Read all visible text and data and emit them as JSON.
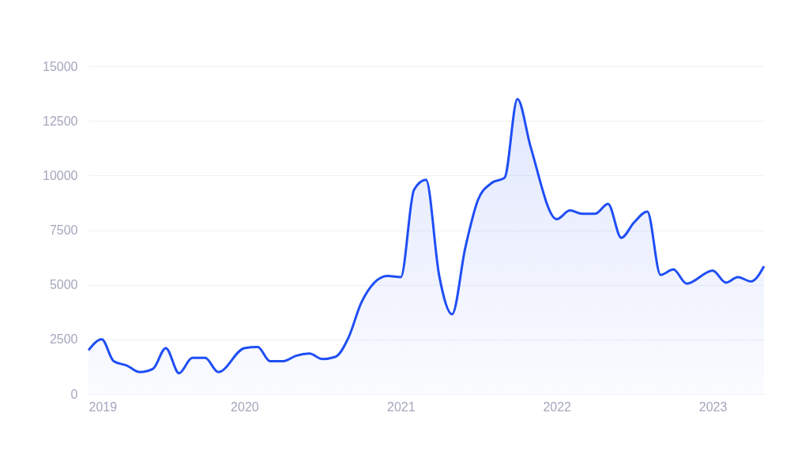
{
  "chart_data": {
    "type": "area",
    "x": [
      "2019-01",
      "2019-02",
      "2019-03",
      "2019-04",
      "2019-05",
      "2019-06",
      "2019-07",
      "2019-08",
      "2019-09",
      "2019-10",
      "2019-11",
      "2020-01",
      "2020-02",
      "2020-03",
      "2020-04",
      "2020-05",
      "2020-06",
      "2020-07",
      "2020-08",
      "2020-09",
      "2020-10",
      "2020-12",
      "2021-01",
      "2021-02",
      "2021-03",
      "2021-04",
      "2021-05",
      "2021-06",
      "2021-07",
      "2021-08",
      "2021-09",
      "2021-10",
      "2021-11",
      "2022-01",
      "2022-02",
      "2022-03",
      "2022-04",
      "2022-05",
      "2022-06",
      "2022-07",
      "2022-08",
      "2022-09",
      "2022-10",
      "2022-11",
      "2023-01",
      "2023-02",
      "2023-03",
      "2023-04",
      "2023-05"
    ],
    "series": [
      {
        "color": "#1f4ef5",
        "values": [
          2000,
          2500,
          1500,
          1300,
          1000,
          1150,
          2100,
          950,
          1650,
          1650,
          1000,
          2100,
          2150,
          1500,
          1500,
          1750,
          1850,
          1600,
          1700,
          2600,
          4200,
          5400,
          5350,
          9350,
          9800,
          5400,
          3650,
          6700,
          8900,
          9650,
          9900,
          13500,
          11300,
          8000,
          8400,
          8250,
          8250,
          8700,
          7150,
          7850,
          8350,
          5450,
          5700,
          5050,
          5650,
          5100,
          5350,
          5150,
          5850
        ]
      }
    ],
    "xlim": [
      "2019-01",
      "2023-05"
    ],
    "xticks": [
      "2019",
      "2020",
      "2021",
      "2022",
      "2023"
    ],
    "ylim": [
      0,
      15000
    ],
    "yticks": [
      0,
      2500,
      5000,
      7500,
      10000,
      12500,
      15000
    ],
    "grid": "y"
  }
}
